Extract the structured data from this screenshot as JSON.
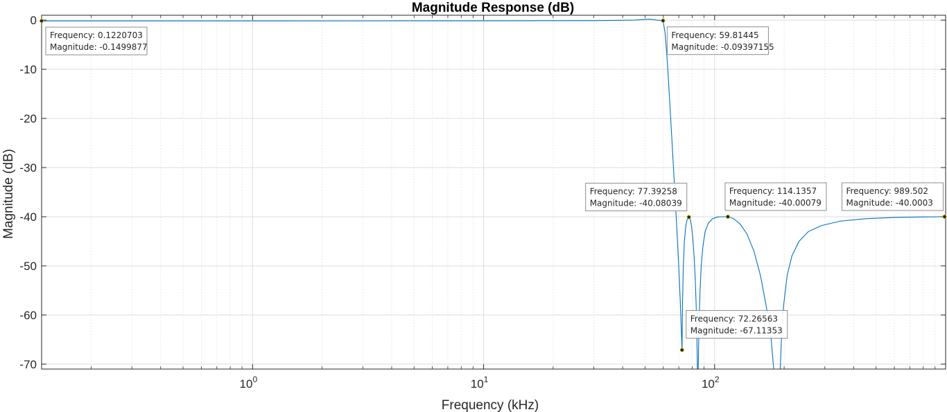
{
  "chart_data": {
    "type": "line",
    "title": "Magnitude Response (dB)",
    "xlabel": "Frequency (kHz)",
    "ylabel": "Magnitude (dB)",
    "xscale": "log",
    "xlim": [
      0.1220703,
      1000
    ],
    "ylim": [
      -71,
      1
    ],
    "x_ticks": [
      {
        "value": 1,
        "base": "10",
        "exp": "0"
      },
      {
        "value": 10,
        "base": "10",
        "exp": "1"
      },
      {
        "value": 100,
        "base": "10",
        "exp": "2"
      }
    ],
    "y_ticks": [
      {
        "value": 0,
        "label": "0"
      },
      {
        "value": -10,
        "label": "-10"
      },
      {
        "value": -20,
        "label": "-20"
      },
      {
        "value": -30,
        "label": "-30"
      },
      {
        "value": -40,
        "label": "-40"
      },
      {
        "value": -50,
        "label": "-50"
      },
      {
        "value": -60,
        "label": "-60"
      },
      {
        "value": -70,
        "label": "-70"
      }
    ],
    "grid": true,
    "line_color": "#0072bd",
    "series": [
      {
        "x": [
          0.1220703,
          1,
          10,
          30,
          45,
          52,
          56,
          59.81445,
          61,
          62,
          63,
          64,
          65,
          66,
          67,
          68,
          69,
          70,
          71,
          72.26563,
          72.6,
          73.2,
          74,
          75,
          76,
          77.39258,
          78.5,
          79.5,
          80.5,
          81.5,
          82.5,
          83.2,
          83.8,
          84.3,
          84.8,
          85.6,
          86.5,
          87.5,
          89,
          91,
          94,
          98,
          103,
          108,
          114.1357,
          121,
          129,
          138,
          148,
          158,
          167,
          175,
          181,
          186,
          189.5,
          192,
          195,
          199,
          206,
          216,
          232,
          255,
          290,
          350,
          450,
          600,
          800,
          989.502,
          1000
        ],
        "y": [
          -0.15,
          -0.15,
          -0.14,
          -0.1,
          0,
          0.2,
          0,
          -0.094,
          -2.5,
          -6.5,
          -11.5,
          -17,
          -22.5,
          -28,
          -33.5,
          -39,
          -44.5,
          -50.5,
          -57,
          -67.1,
          -58,
          -50,
          -45,
          -42,
          -40.6,
          -40.08,
          -40.6,
          -42,
          -44.5,
          -48,
          -53,
          -58,
          -64,
          -72,
          -72,
          -62,
          -55,
          -50,
          -46,
          -43,
          -41.3,
          -40.4,
          -40.05,
          -40,
          -40,
          -40.4,
          -41.5,
          -43.5,
          -47,
          -52,
          -58,
          -64,
          -72,
          -72,
          -72,
          -72,
          -64,
          -58,
          -52,
          -48,
          -45,
          -43,
          -41.8,
          -40.9,
          -40.4,
          -40.15,
          -40.05,
          -40.0003,
          -40
        ]
      }
    ],
    "datatips": [
      {
        "freq_label": "Frequency: 0.1220703",
        "mag_label": "Magnitude: -0.1499877",
        "x": 0.1220703,
        "y": -0.1499877
      },
      {
        "freq_label": "Frequency: 59.81445",
        "mag_label": "Magnitude: -0.09397155",
        "x": 59.81445,
        "y": -0.09397155
      },
      {
        "freq_label": "Frequency: 77.39258",
        "mag_label": "Magnitude: -40.08039",
        "x": 77.39258,
        "y": -40.08039
      },
      {
        "freq_label": "Frequency: 114.1357",
        "mag_label": "Magnitude: -40.00079",
        "x": 114.1357,
        "y": -40.00079
      },
      {
        "freq_label": "Frequency: 989.502",
        "mag_label": "Magnitude: -40.0003",
        "x": 989.502,
        "y": -40.0003
      },
      {
        "freq_label": "Frequency: 72.26563",
        "mag_label": "Magnitude: -67.11353",
        "x": 72.26563,
        "y": -67.11353
      }
    ]
  }
}
